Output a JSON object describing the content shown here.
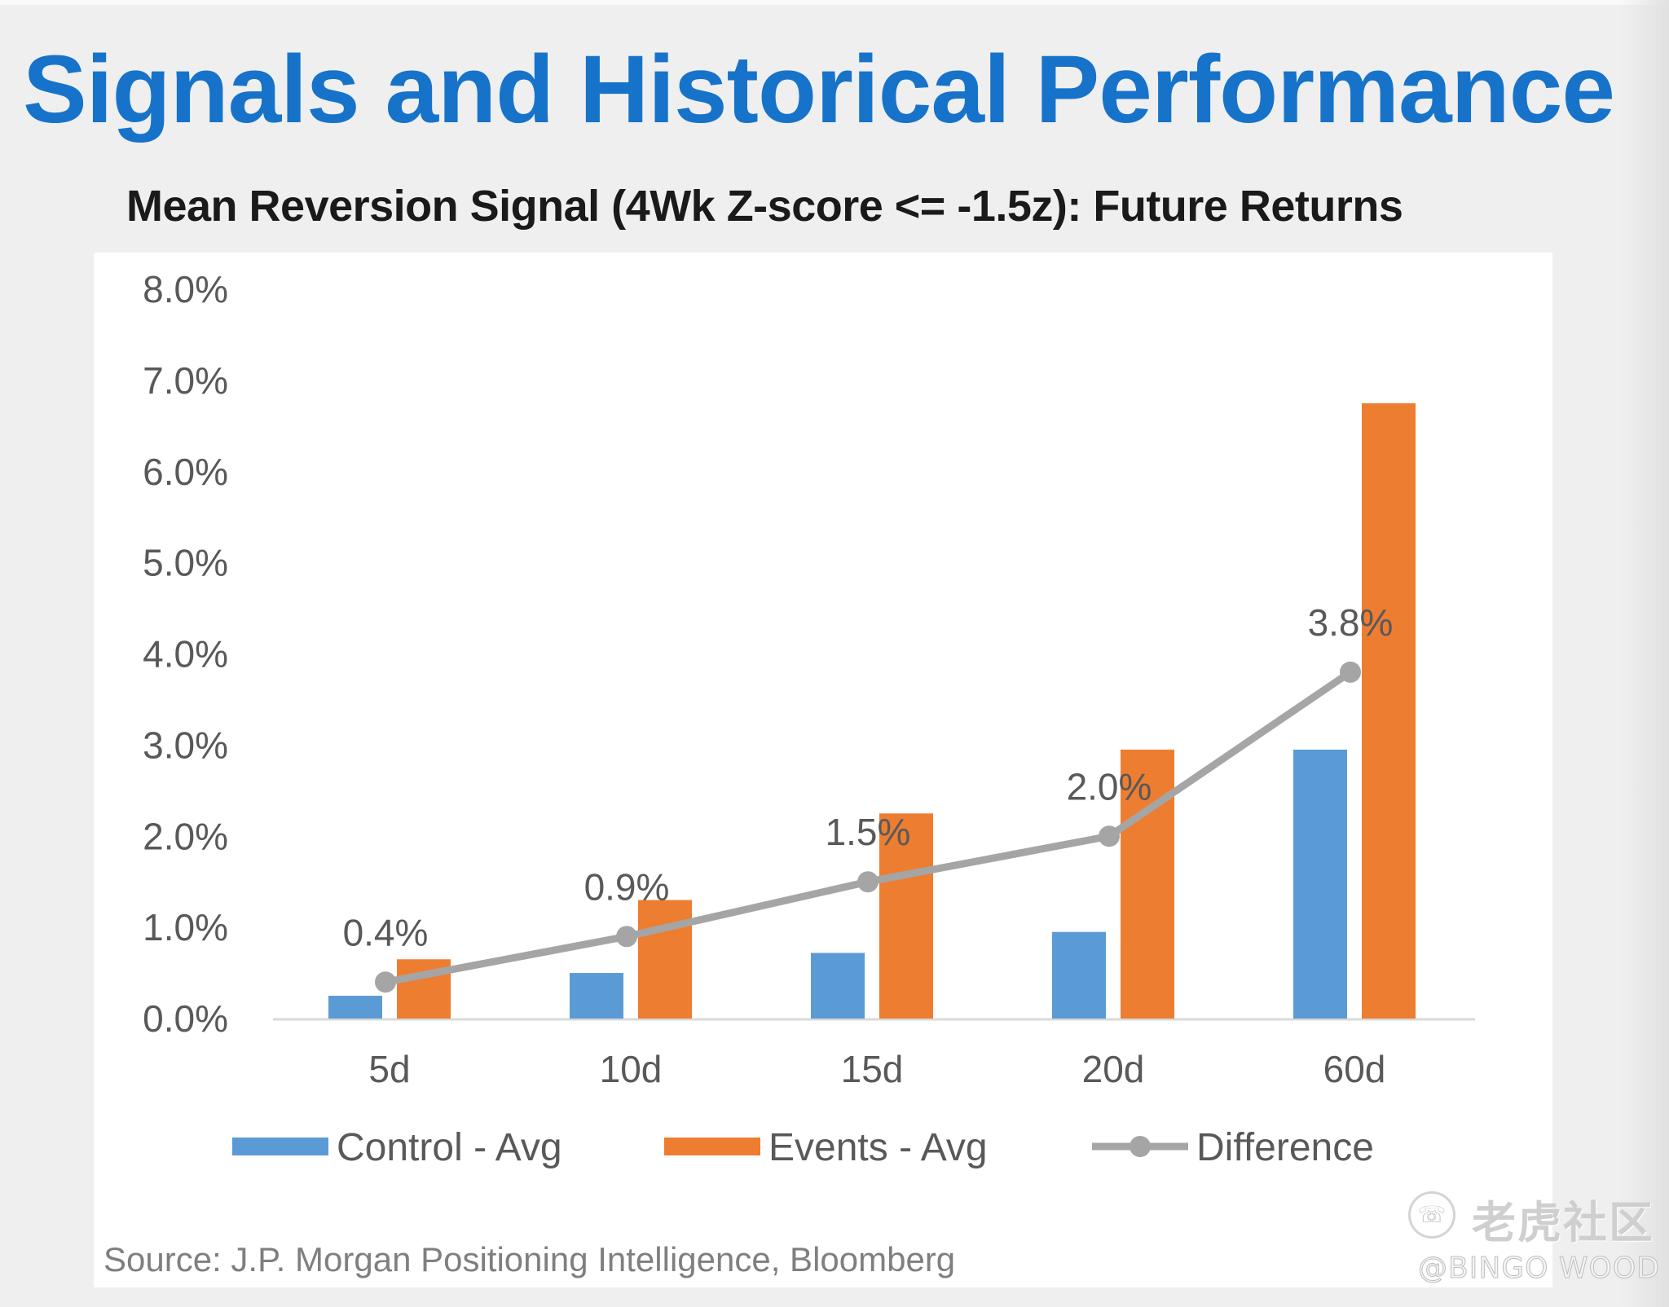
{
  "page": {
    "title": "Signals and Historical Performance"
  },
  "watermark": {
    "brand": "老虎社区",
    "handle": "@BINGO WOOD",
    "logo_icon": "tiger-community-logo-icon"
  },
  "colors": {
    "title": "#1673c9",
    "control": "#5b9bd5",
    "events": "#ed7d31",
    "difference": "#a5a5a5",
    "axis_text": "#595959",
    "axis_line": "#d9d9d9"
  },
  "chart_data": {
    "type": "bar",
    "title": "Mean Reversion Signal (4Wk Z-score <= -1.5z): Future Returns",
    "xlabel": "",
    "ylabel": "",
    "categories": [
      "5d",
      "10d",
      "15d",
      "20d",
      "60d"
    ],
    "ylim": [
      0,
      8
    ],
    "yticks": [
      0,
      1,
      2,
      3,
      4,
      5,
      6,
      7,
      8
    ],
    "ytick_labels": [
      "0.0%",
      "1.0%",
      "2.0%",
      "3.0%",
      "4.0%",
      "5.0%",
      "6.0%",
      "7.0%",
      "8.0%"
    ],
    "grid": false,
    "legend_position": "bottom",
    "series": [
      {
        "name": "Control - Avg",
        "type": "bar",
        "values": [
          0.25,
          0.5,
          0.72,
          0.95,
          2.95
        ]
      },
      {
        "name": "Events - Avg",
        "type": "bar",
        "values": [
          0.65,
          1.3,
          2.25,
          2.95,
          6.75
        ]
      },
      {
        "name": "Difference",
        "type": "line",
        "values": [
          0.4,
          0.9,
          1.5,
          2.0,
          3.8
        ],
        "data_labels": [
          "0.4%",
          "0.9%",
          "1.5%",
          "2.0%",
          "3.8%"
        ]
      }
    ],
    "source": "Source: J.P. Morgan Positioning Intelligence, Bloomberg"
  }
}
